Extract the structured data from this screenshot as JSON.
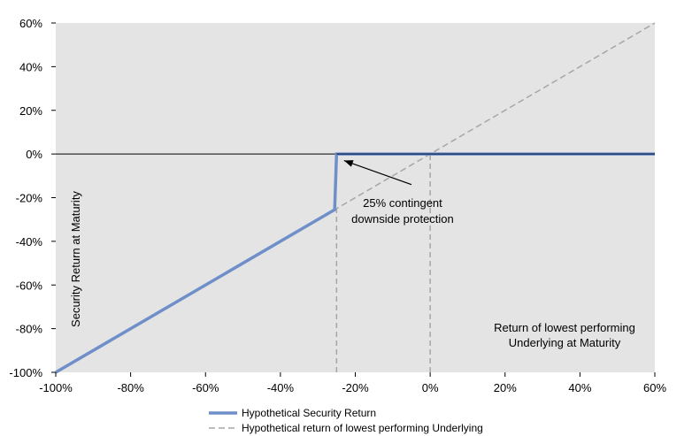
{
  "chart_data": {
    "type": "line",
    "xlabel": "Return of lowest performing Underlying at Maturity",
    "xlabel_lines": [
      "Return of lowest performing",
      "Underlying at Maturity"
    ],
    "ylabel": "Security Return at Maturity",
    "xlim": [
      -100,
      60
    ],
    "ylim": [
      -100,
      60
    ],
    "x_ticks": [
      -100,
      -80,
      -60,
      -40,
      -20,
      0,
      20,
      40,
      60
    ],
    "y_ticks": [
      -100,
      -80,
      -60,
      -40,
      -20,
      0,
      20,
      40,
      60
    ],
    "x_tick_labels": [
      "-100%",
      "-80%",
      "-60%",
      "-40%",
      "-20%",
      "0%",
      "20%",
      "40%",
      "60%"
    ],
    "y_tick_labels": [
      "-100%",
      "-80%",
      "-60%",
      "-40%",
      "-20%",
      "0%",
      "20%",
      "40%",
      "60%"
    ],
    "grid": false,
    "legend_position": "bottom",
    "series": [
      {
        "name": "Hypothetical Security Return",
        "style": "solid",
        "color": "#6f8fc9",
        "points": [
          [
            -100,
            -100
          ],
          [
            -25.5,
            -25.5
          ],
          [
            -25,
            0
          ],
          [
            60,
            0
          ]
        ]
      },
      {
        "name": "Hypothetical return of lowest performing Underlying",
        "style": "dashed",
        "color": "#a6a6a6",
        "points": [
          [
            -100,
            -100
          ],
          [
            60,
            60
          ]
        ]
      }
    ],
    "reference_lines": [
      {
        "orientation": "vertical",
        "x": -25,
        "y_from": -100,
        "y_to": -25
      },
      {
        "orientation": "vertical",
        "x": 0,
        "y_from": -100,
        "y_to": 0
      }
    ],
    "annotation": {
      "lines": [
        "25% contingent",
        "downside protection"
      ],
      "arrow_to": [
        -23,
        -3
      ],
      "arrow_from": [
        -5,
        -14
      ]
    },
    "colors": {
      "plot_background": "#e4e4e4",
      "zero_line": "#000000",
      "security_line": "#6f8fc9",
      "security_line_dark": "#1f3864",
      "underlying_line": "#a6a6a6"
    }
  }
}
